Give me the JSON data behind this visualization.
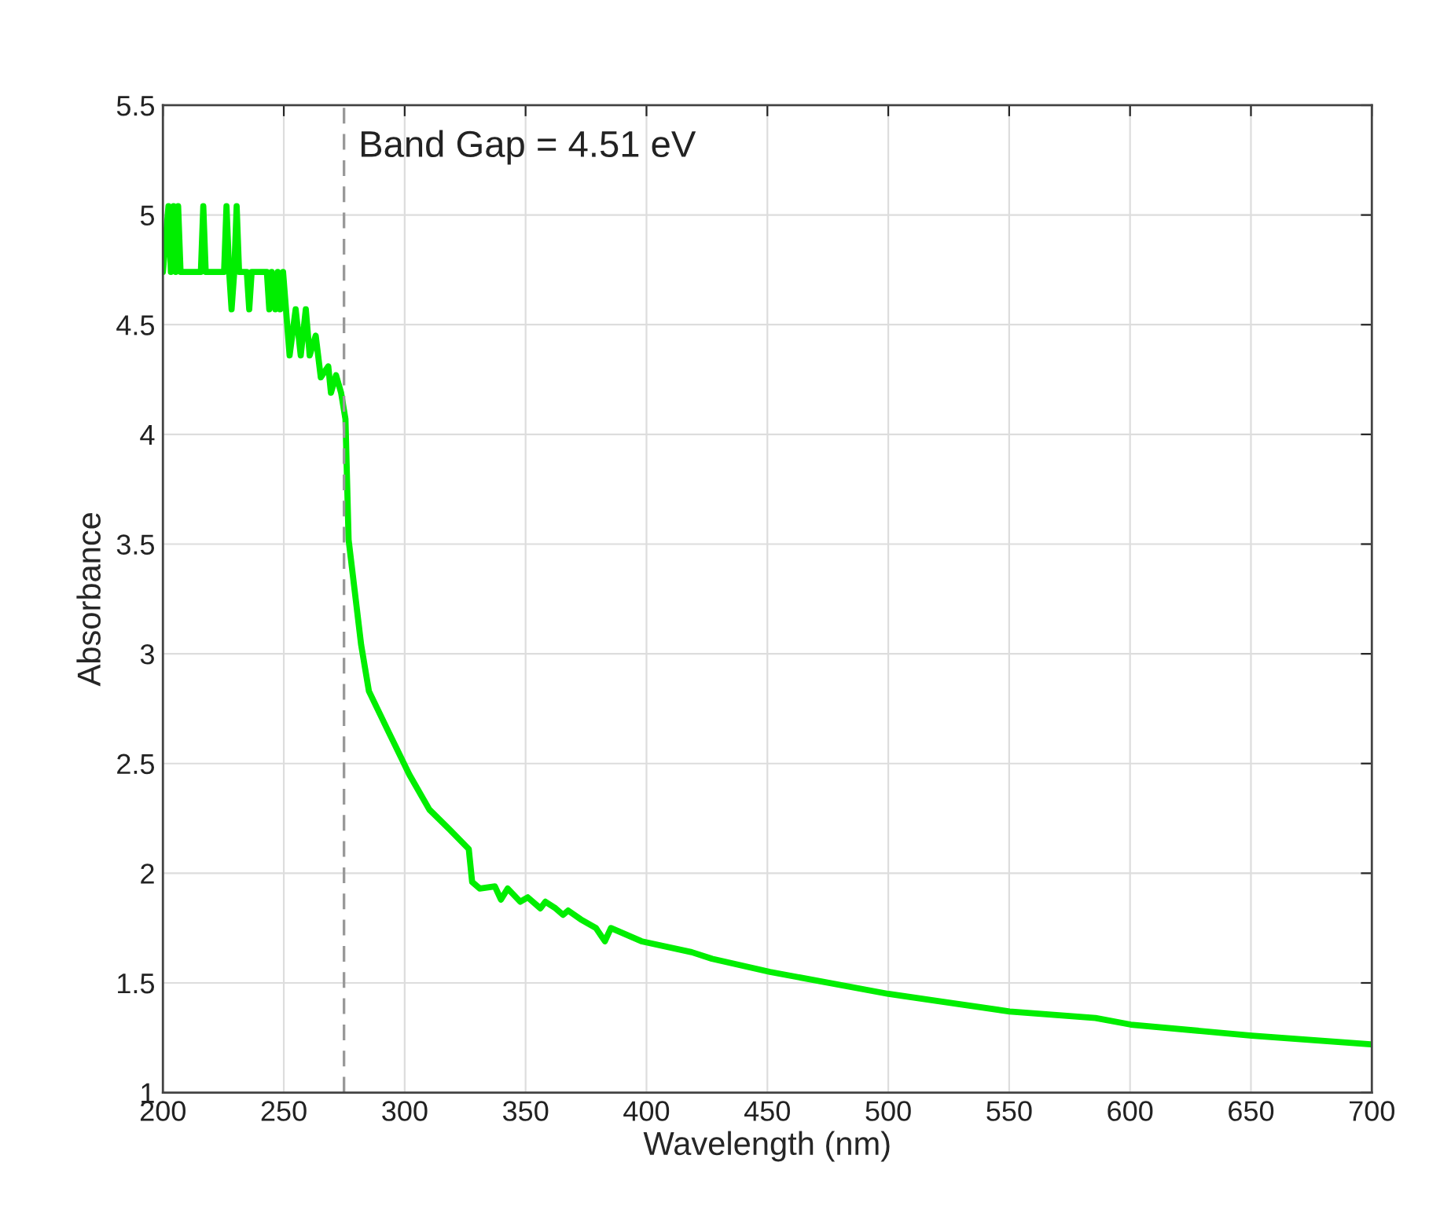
{
  "chart_data": {
    "type": "line",
    "xlabel": "Wavelength (nm)",
    "ylabel": "Absorbance",
    "series": [
      {
        "color": "#00ee00",
        "x": [
          200,
          202.3,
          203.3,
          204.4,
          205.3,
          206.3,
          207.3,
          215.7,
          216.7,
          217.7,
          225.3,
          226.3,
          227.4,
          228.4,
          229.5,
          230.5,
          231.5,
          232.5,
          234.7,
          235.7,
          236.7,
          243,
          244,
          245,
          246.5,
          247.5,
          248.5,
          249.7,
          252.4,
          254.9,
          257,
          259.1,
          260.7,
          263.2,
          265.3,
          268.4,
          269.5,
          271.6,
          273.7,
          275.5,
          276.8,
          282,
          285.2,
          293.5,
          301.9,
          310.2,
          318.5,
          326.5,
          327.9,
          331.1,
          337.3,
          339.8,
          342.6,
          347.8,
          350.9,
          356.1,
          358.2,
          362.4,
          365.5,
          367.6,
          372.8,
          379.1,
          382.8,
          385.3,
          397.9,
          418.7,
          427.1,
          451.1,
          500.1,
          550.2,
          585.7,
          600.3,
          650.4,
          699.5
        ],
        "values": [
          4.74,
          5.04,
          4.74,
          5.04,
          4.74,
          5.04,
          4.74,
          4.74,
          5.04,
          4.74,
          4.74,
          5.04,
          4.74,
          4.57,
          4.74,
          5.04,
          4.74,
          4.74,
          4.74,
          4.57,
          4.74,
          4.74,
          4.57,
          4.74,
          4.57,
          4.74,
          4.57,
          4.74,
          4.36,
          4.57,
          4.36,
          4.57,
          4.36,
          4.45,
          4.26,
          4.31,
          4.19,
          4.27,
          4.19,
          4.07,
          3.52,
          3.04,
          2.83,
          2.64,
          2.45,
          2.29,
          2.2,
          2.11,
          1.96,
          1.93,
          1.94,
          1.88,
          1.93,
          1.87,
          1.89,
          1.84,
          1.87,
          1.84,
          1.81,
          1.83,
          1.79,
          1.75,
          1.69,
          1.75,
          1.69,
          1.64,
          1.61,
          1.55,
          1.45,
          1.37,
          1.34,
          1.31,
          1.26,
          1.22
        ]
      }
    ],
    "xlim": [
      200,
      700
    ],
    "xticks": [
      200,
      250,
      300,
      350,
      400,
      450,
      500,
      550,
      600,
      650,
      700
    ],
    "ylim": [
      1,
      5.5
    ],
    "yticks": [
      1,
      1.5,
      2,
      2.5,
      3,
      3.5,
      4,
      4.5,
      5,
      5.5
    ],
    "ref_lines": [
      {
        "axis": "x",
        "value": 274.9,
        "color": "#999999",
        "line_style": "dashed"
      }
    ],
    "annotations": [
      "Band Gap = 4.51 eV"
    ],
    "grid": true,
    "marker": "none",
    "line_style": "solid",
    "legend": false
  }
}
